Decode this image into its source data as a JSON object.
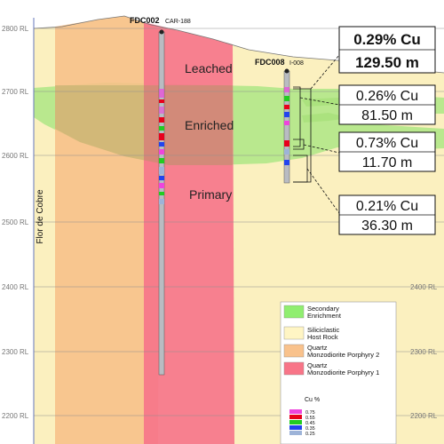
{
  "elevations": [
    {
      "label": "2800 RL",
      "right": ""
    },
    {
      "label": "2700 RL",
      "right": ""
    },
    {
      "label": "2600 RL",
      "right": ""
    },
    {
      "label": "2500 RL",
      "right": ""
    },
    {
      "label": "2400 RL",
      "right": "2400 RL"
    },
    {
      "label": "2300 RL",
      "right": "2300 RL"
    },
    {
      "label": "2200 RL",
      "right": "2200 RL"
    }
  ],
  "vertical_label": "Flor de Cobre",
  "zones": {
    "leached": "Leached",
    "enriched": "Enriched",
    "primary": "Primary"
  },
  "holes": [
    {
      "id": "FDC002",
      "alias": "CAR-188"
    },
    {
      "id": "FDC008",
      "alias": "I-008"
    }
  ],
  "intercepts": [
    {
      "grade": "0.29% Cu",
      "length": "129.50 m"
    },
    {
      "grade": "0.26% Cu",
      "length": "81.50 m"
    },
    {
      "grade": "0.73% Cu",
      "length": "11.70 m"
    },
    {
      "grade": "0.21% Cu",
      "length": "36.30 m"
    }
  ],
  "legend": {
    "items": [
      {
        "label": "Secondary Enrichment",
        "color": "#90ee70"
      },
      {
        "label": "Siliciclastic Host Rock",
        "color": "#fff5c4"
      },
      {
        "label": "Quartz Monzodiorite Porphyry 2",
        "color": "#f9c28c"
      },
      {
        "label": "Quartz Monzodiorite Porphyry 1",
        "color": "#f87588"
      }
    ],
    "cu_title": "Cu %",
    "cu_scale": [
      {
        "value": "0.75",
        "color": "#ee44dd"
      },
      {
        "value": "0.55",
        "color": "#e8001c"
      },
      {
        "value": "0.45",
        "color": "#22cc22"
      },
      {
        "value": "0.35",
        "color": "#2244ee"
      },
      {
        "value": "0.25",
        "color": "#9db3d8"
      }
    ]
  },
  "colors": {
    "host_rock": "#fbf0bf",
    "enrichment": "#b6e78a",
    "porphyry2": "#f7bf89",
    "porphyry1": "#f67389",
    "sky": "#ffffff"
  }
}
